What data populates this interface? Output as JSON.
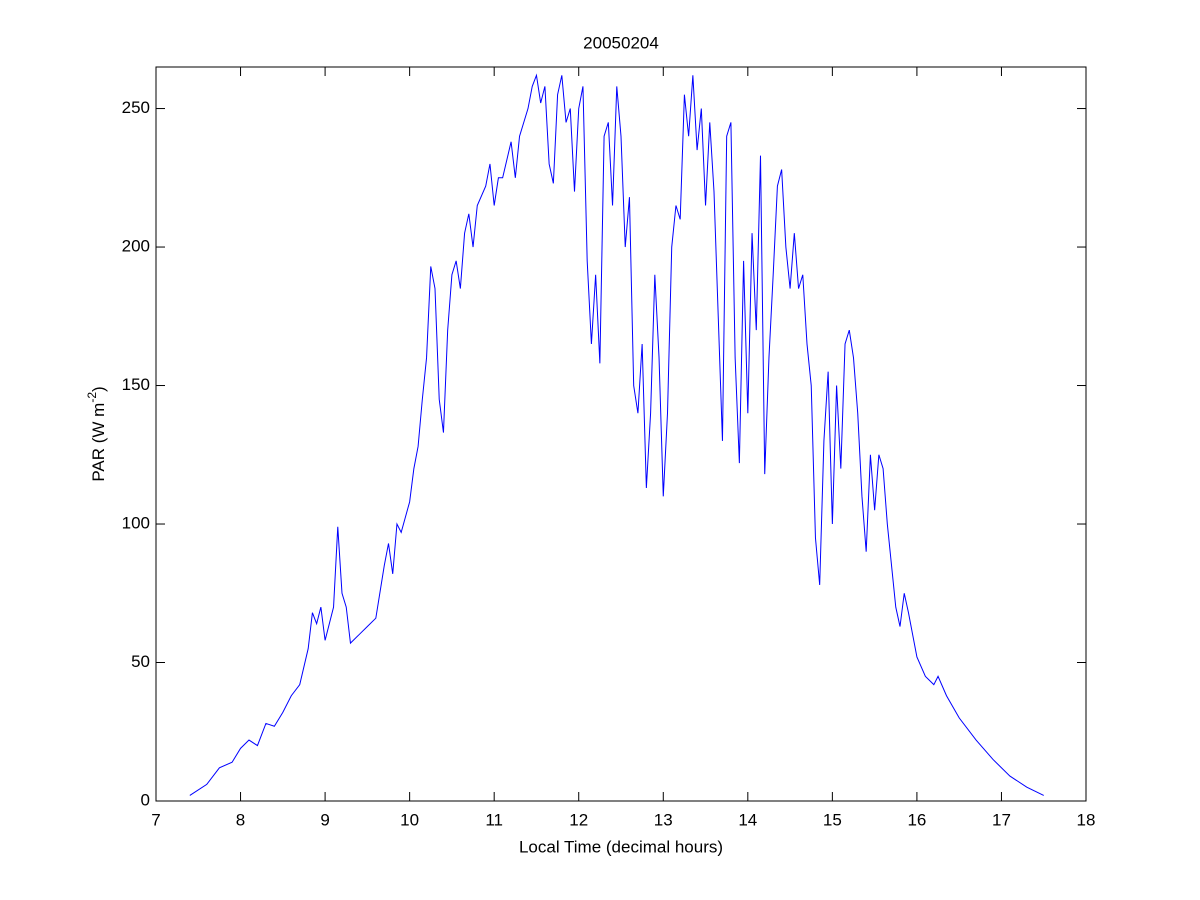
{
  "chart_data": {
    "type": "line",
    "title": "20050204",
    "xlabel": "Local Time (decimal hours)",
    "ylabel": [
      "PAR (W m",
      "-2",
      ")"
    ],
    "xlim": [
      7,
      18
    ],
    "ylim": [
      0,
      265
    ],
    "xticks": [
      7,
      8,
      9,
      10,
      11,
      12,
      13,
      14,
      15,
      16,
      17,
      18
    ],
    "yticks": [
      0,
      50,
      100,
      150,
      200,
      250
    ],
    "grid": false,
    "series": [
      {
        "color": "#0000ff",
        "x": [
          7.4,
          7.6,
          7.75,
          7.9,
          8.0,
          8.1,
          8.2,
          8.3,
          8.4,
          8.5,
          8.6,
          8.7,
          8.8,
          8.85,
          8.9,
          8.95,
          9.0,
          9.05,
          9.1,
          9.15,
          9.2,
          9.25,
          9.3,
          9.4,
          9.5,
          9.6,
          9.7,
          9.75,
          9.8,
          9.85,
          9.9,
          10.0,
          10.05,
          10.1,
          10.15,
          10.2,
          10.25,
          10.3,
          10.35,
          10.4,
          10.45,
          10.5,
          10.55,
          10.6,
          10.65,
          10.7,
          10.75,
          10.8,
          10.9,
          10.95,
          11.0,
          11.05,
          11.1,
          11.2,
          11.25,
          11.3,
          11.4,
          11.45,
          11.5,
          11.55,
          11.6,
          11.65,
          11.7,
          11.75,
          11.8,
          11.85,
          11.9,
          11.95,
          12.0,
          12.05,
          12.1,
          12.15,
          12.2,
          12.25,
          12.3,
          12.35,
          12.4,
          12.45,
          12.5,
          12.55,
          12.6,
          12.65,
          12.7,
          12.75,
          12.8,
          12.85,
          12.9,
          12.95,
          13.0,
          13.05,
          13.1,
          13.15,
          13.2,
          13.25,
          13.3,
          13.35,
          13.4,
          13.45,
          13.5,
          13.55,
          13.6,
          13.65,
          13.7,
          13.75,
          13.8,
          13.85,
          13.9,
          13.95,
          14.0,
          14.05,
          14.1,
          14.15,
          14.2,
          14.25,
          14.3,
          14.35,
          14.4,
          14.45,
          14.5,
          14.55,
          14.6,
          14.65,
          14.7,
          14.75,
          14.8,
          14.85,
          14.9,
          14.95,
          15.0,
          15.05,
          15.1,
          15.15,
          15.2,
          15.25,
          15.3,
          15.35,
          15.4,
          15.45,
          15.5,
          15.55,
          15.6,
          15.65,
          15.7,
          15.75,
          15.8,
          15.85,
          15.9,
          16.0,
          16.1,
          16.2,
          16.25,
          16.35,
          16.5,
          16.7,
          16.9,
          17.1,
          17.3,
          17.5
        ],
        "values": [
          2,
          6,
          12,
          14,
          19,
          22,
          20,
          28,
          27,
          32,
          38,
          42,
          55,
          68,
          64,
          70,
          58,
          64,
          70,
          99,
          75,
          70,
          57,
          60,
          63,
          66,
          85,
          93,
          82,
          100,
          97,
          108,
          120,
          128,
          145,
          160,
          193,
          185,
          145,
          133,
          170,
          190,
          195,
          185,
          205,
          212,
          200,
          215,
          222,
          230,
          215,
          225,
          225,
          238,
          225,
          240,
          250,
          258,
          262,
          252,
          258,
          230,
          223,
          255,
          262,
          245,
          250,
          220,
          250,
          258,
          195,
          165,
          190,
          158,
          240,
          245,
          215,
          258,
          240,
          200,
          218,
          150,
          140,
          165,
          113,
          140,
          190,
          160,
          110,
          140,
          200,
          215,
          210,
          255,
          240,
          262,
          235,
          250,
          215,
          245,
          220,
          175,
          130,
          240,
          245,
          160,
          122,
          195,
          140,
          205,
          170,
          233,
          118,
          160,
          190,
          222,
          228,
          200,
          185,
          205,
          185,
          190,
          165,
          150,
          95,
          78,
          130,
          155,
          100,
          150,
          120,
          165,
          170,
          160,
          140,
          110,
          90,
          125,
          105,
          125,
          120,
          100,
          85,
          70,
          63,
          75,
          68,
          52,
          45,
          42,
          45,
          38,
          30,
          22,
          15,
          9,
          5,
          2
        ]
      }
    ]
  }
}
